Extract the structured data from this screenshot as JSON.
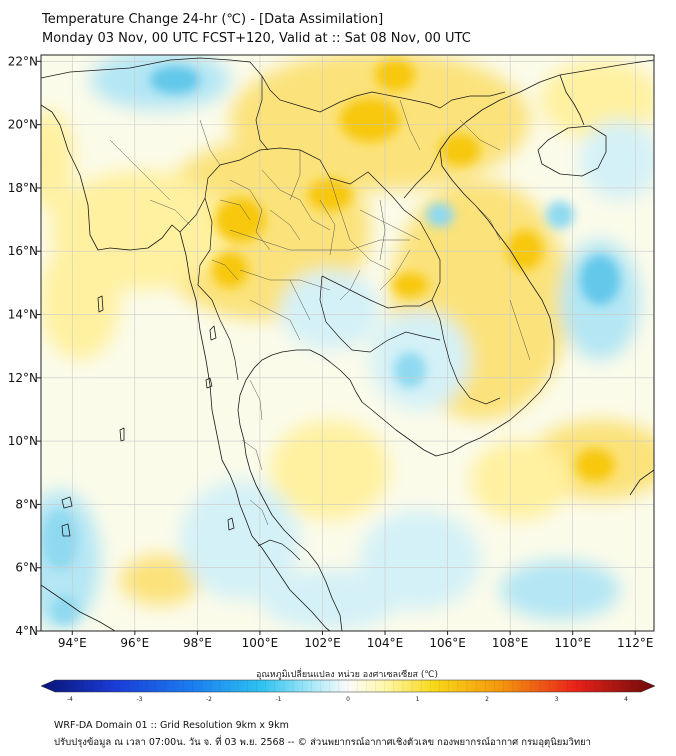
{
  "title_line1": "Temperature Change 24-hr (℃) - [Data Assimilation]",
  "title_line2": "Monday 03 Nov, 00 UTC FCST+120, Valid at :: Sat 08 Nov, 00 UTC",
  "map": {
    "lon_range": [
      93,
      112.6
    ],
    "lat_range": [
      4,
      22.2
    ],
    "lon_ticks": [
      "94°E",
      "96°E",
      "98°E",
      "100°E",
      "102°E",
      "104°E",
      "106°E",
      "108°E",
      "110°E",
      "112°E"
    ],
    "lat_ticks": [
      "22°N",
      "20°N",
      "18°N",
      "16°N",
      "14°N",
      "12°N",
      "10°N",
      "8°N",
      "6°N",
      "4°N"
    ],
    "field_colors": {
      "warm": "#f7c80a",
      "light_warm": "#fff6b0",
      "neutral": "#fbfbea",
      "light_cool": "#d4f1f7",
      "cool": "#63c8ea"
    }
  },
  "colorbar": {
    "label": "อุณหภูมิเปลี่ยนแปลง หน่วย องศาเซลเซียส (℃)",
    "ticks": [
      "-4",
      "-3",
      "-2",
      "-1",
      "0",
      "1",
      "2",
      "3",
      "4"
    ],
    "range": [
      -4,
      4
    ]
  },
  "footer": {
    "line1": "WRF-DA Domain 01 :: Grid Resolution 9km x 9km",
    "line2": "ปรับปรุงข้อมูล ณ เวลา 07:00น. วัน จ. ที่ 03 พ.ย. 2568 -- © ส่วนพยากรณ์อากาศเชิงตัวเลข กองพยากรณ์อากาศ กรมอุตุนิยมวิทยา"
  }
}
